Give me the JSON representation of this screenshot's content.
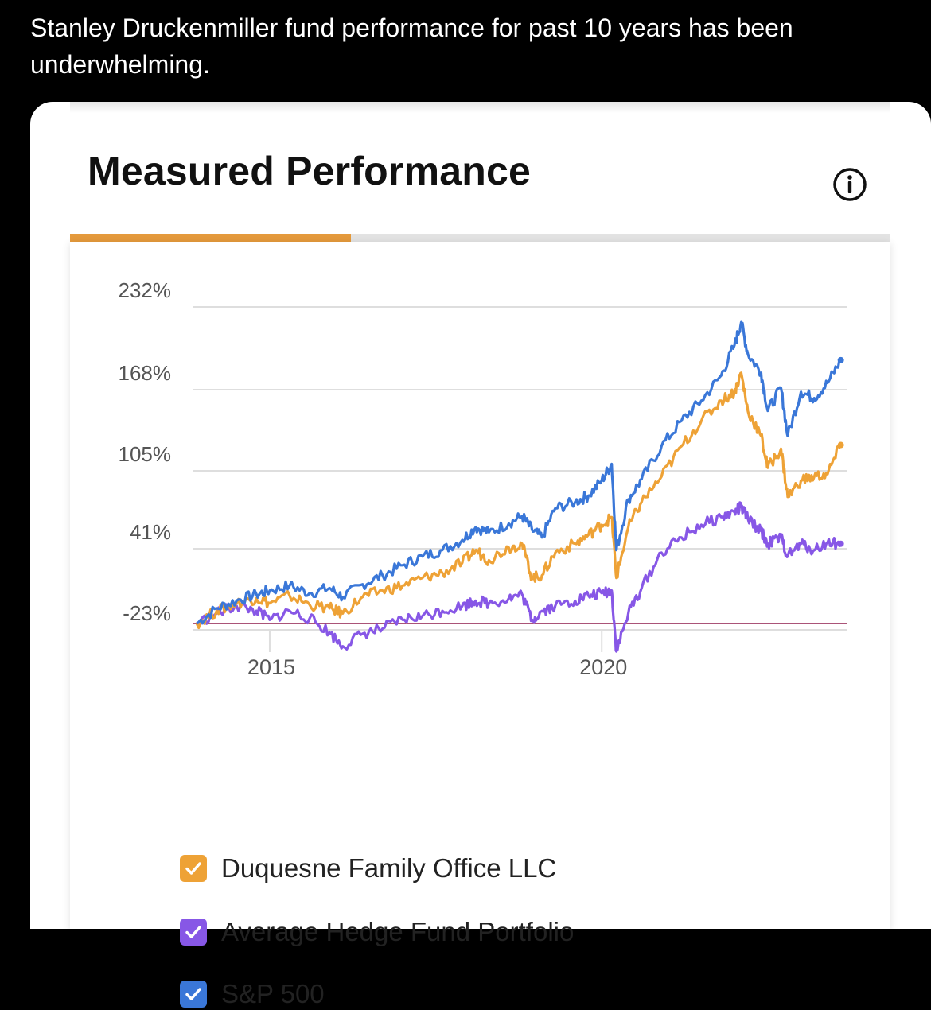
{
  "post": {
    "text": "Stanley Druckenmiller fund performance for past 10 years has been underwhelming."
  },
  "card": {
    "title": "Measured Performance",
    "info_icon": "info-circle-icon"
  },
  "colors": {
    "accent": "#e59a3c",
    "duquesne": "#eea236",
    "hedge": "#8757e6",
    "sp500": "#3a77d8",
    "baseline": "#8e1c4c"
  },
  "chart_data": {
    "type": "line",
    "ylabel": "",
    "xlabel": "",
    "y_ticks": [
      "232%",
      "168%",
      "105%",
      "41%",
      "-23%"
    ],
    "y_tick_values": [
      232,
      168,
      105,
      41,
      -23
    ],
    "x_ticks": [
      "2015",
      "2020"
    ],
    "x_tick_values": [
      2015.0,
      2020.0
    ],
    "xlim": [
      2013.85,
      2023.7
    ],
    "ylim": [
      -46,
      240
    ],
    "grid": true,
    "legend_position": "bottom",
    "baseline_value": -18,
    "series": [
      {
        "name": "S&P 500",
        "color_key": "sp500",
        "points": [
          [
            2013.9,
            -18
          ],
          [
            2014.2,
            -6
          ],
          [
            2014.5,
            0
          ],
          [
            2014.8,
            5
          ],
          [
            2015.0,
            8
          ],
          [
            2015.3,
            12
          ],
          [
            2015.6,
            6
          ],
          [
            2015.9,
            10
          ],
          [
            2016.1,
            3
          ],
          [
            2016.4,
            13
          ],
          [
            2016.7,
            20
          ],
          [
            2017.0,
            28
          ],
          [
            2017.3,
            35
          ],
          [
            2017.6,
            40
          ],
          [
            2017.9,
            48
          ],
          [
            2018.1,
            58
          ],
          [
            2018.3,
            54
          ],
          [
            2018.6,
            61
          ],
          [
            2018.8,
            67
          ],
          [
            2018.95,
            56
          ],
          [
            2019.1,
            50
          ],
          [
            2019.3,
            73
          ],
          [
            2019.6,
            78
          ],
          [
            2019.8,
            83
          ],
          [
            2020.0,
            95
          ],
          [
            2020.15,
            108
          ],
          [
            2020.22,
            40
          ],
          [
            2020.4,
            80
          ],
          [
            2020.6,
            96
          ],
          [
            2020.9,
            122
          ],
          [
            2021.2,
            142
          ],
          [
            2021.5,
            158
          ],
          [
            2021.8,
            178
          ],
          [
            2022.0,
            202
          ],
          [
            2022.1,
            220
          ],
          [
            2022.2,
            195
          ],
          [
            2022.4,
            180
          ],
          [
            2022.5,
            150
          ],
          [
            2022.7,
            168
          ],
          [
            2022.8,
            130
          ],
          [
            2023.0,
            165
          ],
          [
            2023.2,
            160
          ],
          [
            2023.4,
            172
          ],
          [
            2023.6,
            190
          ]
        ]
      },
      {
        "name": "Duquesne Family Office LLC",
        "color_key": "duquesne",
        "points": [
          [
            2013.9,
            -18
          ],
          [
            2014.2,
            -8
          ],
          [
            2014.5,
            -2
          ],
          [
            2014.8,
            2
          ],
          [
            2015.0,
            -2
          ],
          [
            2015.3,
            4
          ],
          [
            2015.6,
            -3
          ],
          [
            2015.9,
            -6
          ],
          [
            2016.1,
            -10
          ],
          [
            2016.4,
            3
          ],
          [
            2016.7,
            8
          ],
          [
            2017.0,
            12
          ],
          [
            2017.3,
            18
          ],
          [
            2017.6,
            22
          ],
          [
            2017.9,
            30
          ],
          [
            2018.1,
            40
          ],
          [
            2018.3,
            32
          ],
          [
            2018.6,
            42
          ],
          [
            2018.8,
            45
          ],
          [
            2018.95,
            18
          ],
          [
            2019.1,
            20
          ],
          [
            2019.3,
            38
          ],
          [
            2019.6,
            45
          ],
          [
            2019.8,
            52
          ],
          [
            2020.0,
            60
          ],
          [
            2020.15,
            66
          ],
          [
            2020.22,
            18
          ],
          [
            2020.4,
            58
          ],
          [
            2020.6,
            78
          ],
          [
            2020.9,
            98
          ],
          [
            2021.2,
            122
          ],
          [
            2021.5,
            142
          ],
          [
            2021.8,
            158
          ],
          [
            2022.0,
            165
          ],
          [
            2022.1,
            180
          ],
          [
            2022.2,
            150
          ],
          [
            2022.4,
            130
          ],
          [
            2022.5,
            105
          ],
          [
            2022.7,
            120
          ],
          [
            2022.8,
            82
          ],
          [
            2023.0,
            95
          ],
          [
            2023.2,
            98
          ],
          [
            2023.4,
            100
          ],
          [
            2023.6,
            123
          ]
        ]
      },
      {
        "name": "Average Hedge Fund Portfolio",
        "color_key": "hedge",
        "points": [
          [
            2013.9,
            -18
          ],
          [
            2014.2,
            -10
          ],
          [
            2014.5,
            -4
          ],
          [
            2014.8,
            -8
          ],
          [
            2015.0,
            -15
          ],
          [
            2015.3,
            -8
          ],
          [
            2015.6,
            -14
          ],
          [
            2015.9,
            -25
          ],
          [
            2016.1,
            -36
          ],
          [
            2016.4,
            -26
          ],
          [
            2016.7,
            -22
          ],
          [
            2017.0,
            -15
          ],
          [
            2017.3,
            -12
          ],
          [
            2017.6,
            -8
          ],
          [
            2017.9,
            -4
          ],
          [
            2018.1,
            0
          ],
          [
            2018.3,
            -2
          ],
          [
            2018.6,
            2
          ],
          [
            2018.8,
            5
          ],
          [
            2018.95,
            -15
          ],
          [
            2019.1,
            -8
          ],
          [
            2019.3,
            -4
          ],
          [
            2019.6,
            0
          ],
          [
            2019.8,
            4
          ],
          [
            2020.0,
            6
          ],
          [
            2020.15,
            8
          ],
          [
            2020.22,
            -40
          ],
          [
            2020.4,
            -10
          ],
          [
            2020.6,
            10
          ],
          [
            2020.9,
            38
          ],
          [
            2021.2,
            50
          ],
          [
            2021.5,
            60
          ],
          [
            2021.8,
            66
          ],
          [
            2022.0,
            70
          ],
          [
            2022.1,
            74
          ],
          [
            2022.2,
            65
          ],
          [
            2022.4,
            55
          ],
          [
            2022.5,
            45
          ],
          [
            2022.7,
            50
          ],
          [
            2022.8,
            35
          ],
          [
            2023.0,
            45
          ],
          [
            2023.2,
            40
          ],
          [
            2023.4,
            46
          ],
          [
            2023.6,
            45
          ]
        ]
      }
    ]
  },
  "legend": {
    "items": [
      {
        "label": "Duquesne Family Office LLC",
        "color_key": "duquesne",
        "checked": true
      },
      {
        "label": "Average Hedge Fund Portfolio",
        "color_key": "hedge",
        "checked": true
      },
      {
        "label": "S&P 500",
        "color_key": "sp500",
        "checked": true
      }
    ]
  }
}
